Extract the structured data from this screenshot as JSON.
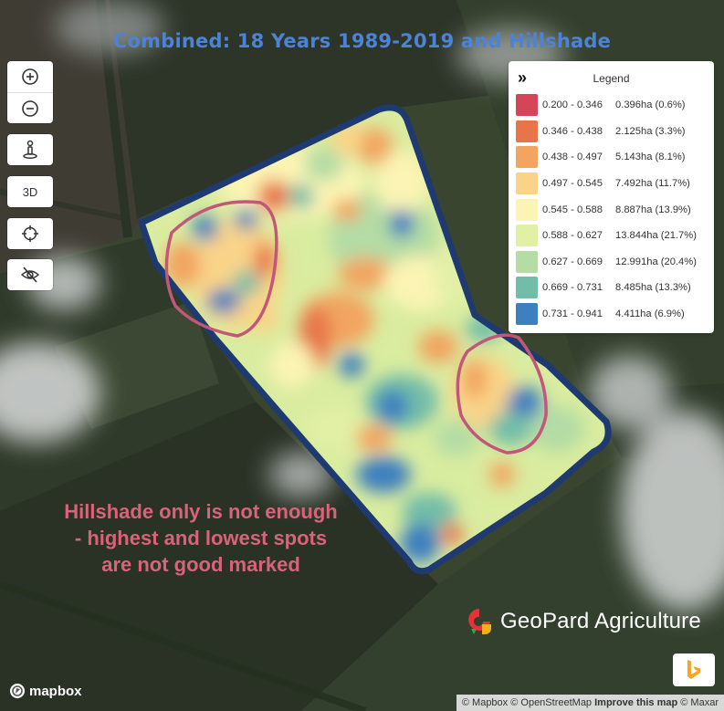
{
  "map": {
    "title": "Combined: 18 Years 1989-2019 and Hillshade",
    "annotation_lines": [
      "Hillshade only is not enough",
      "- highest and lowest spots",
      "are not good marked"
    ],
    "annotation_color": "#d9637a",
    "field_outline_color": "#1e3a70",
    "highlight_circle_color": "#c25878"
  },
  "controls": {
    "zoom_in_icon": "plus-circle-icon",
    "zoom_out_icon": "minus-circle-icon",
    "pegman_icon": "street-view-icon",
    "three_d_label": "3D",
    "locate_icon": "crosshair-icon",
    "hide_icon": "eye-slash-icon"
  },
  "legend": {
    "toggle": "»",
    "title": "Legend",
    "items": [
      {
        "range": "0.200 - 0.346",
        "area": "0.396ha (0.6%)",
        "color": "#d64458"
      },
      {
        "range": "0.346 - 0.438",
        "area": "2.125ha (3.3%)",
        "color": "#e8744a"
      },
      {
        "range": "0.438 - 0.497",
        "area": "5.143ha (8.1%)",
        "color": "#f2a461"
      },
      {
        "range": "0.497 - 0.545",
        "area": "7.492ha (11.7%)",
        "color": "#f9d488"
      },
      {
        "range": "0.545 - 0.588",
        "area": "8.887ha (13.9%)",
        "color": "#fbf4b4"
      },
      {
        "range": "0.588 - 0.627",
        "area": "13.844ha (21.7%)",
        "color": "#e2f0a6"
      },
      {
        "range": "0.627 - 0.669",
        "area": "12.991ha (20.4%)",
        "color": "#b4dca4"
      },
      {
        "range": "0.669 - 0.731",
        "area": "8.485ha (13.3%)",
        "color": "#72bda8"
      },
      {
        "range": "0.731 - 0.941",
        "area": "4.411ha (6.9%)",
        "color": "#3e7fbf"
      }
    ]
  },
  "branding": {
    "company": "GeoPard Agriculture",
    "mapbox": "mapbox",
    "bing_icon": "bing-logo-icon"
  },
  "attribution": {
    "mapbox": "© Mapbox",
    "osm": "© OpenStreetMap",
    "improve": "Improve this map",
    "maxar": "© Maxar"
  }
}
